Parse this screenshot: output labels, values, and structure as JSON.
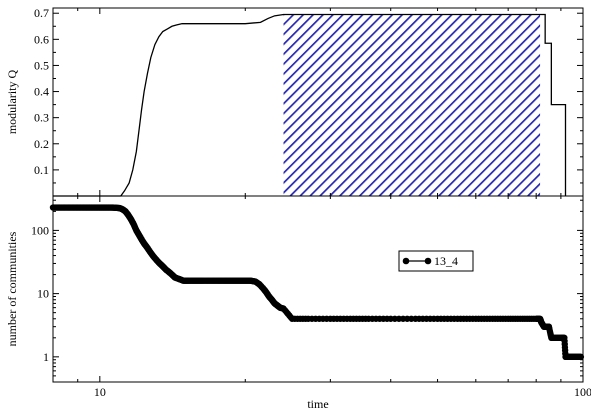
{
  "chart_data": [
    {
      "type": "area",
      "ylabel": "modularity Q",
      "xscale": "log",
      "xlim": [
        8,
        100
      ],
      "ylim": [
        0,
        0.72
      ],
      "yticks": [
        0.1,
        0.2,
        0.3,
        0.4,
        0.5,
        0.6,
        0.7
      ],
      "ytick_labels": [
        "0.1",
        "0.2",
        "0.3",
        "0.4",
        "0.5",
        "0.6",
        "0.7"
      ],
      "grid": false,
      "hatch_color": "#2626b0",
      "series": [
        {
          "style": "step",
          "color": "#000000",
          "x": [
            8,
            11.05,
            11.25,
            11.5,
            11.7,
            11.9,
            12.05,
            12.2,
            12.35,
            12.55,
            12.75,
            13.0,
            13.25,
            13.5,
            13.8,
            14.1,
            14.4,
            14.8,
            15.3,
            16.2,
            18.0,
            20.0,
            21.5,
            22.3,
            23.0,
            24.0,
            30.0,
            40.0,
            60.0,
            81.5,
            83.5,
            86.0,
            90.5,
            92.0
          ],
          "y": [
            0.0,
            0.0,
            0.02,
            0.05,
            0.1,
            0.17,
            0.25,
            0.33,
            0.4,
            0.47,
            0.53,
            0.58,
            0.61,
            0.63,
            0.64,
            0.65,
            0.655,
            0.66,
            0.66,
            0.66,
            0.66,
            0.66,
            0.665,
            0.68,
            0.69,
            0.695,
            0.695,
            0.695,
            0.695,
            0.695,
            0.585,
            0.35,
            0.35,
            0.0
          ]
        }
      ],
      "hatched_region": {
        "x_from": 24.0,
        "x_to": 81.5,
        "y": 0.695
      }
    },
    {
      "type": "line",
      "ylabel": "number of communities",
      "xlabel": "time",
      "xscale": "log",
      "yscale": "log",
      "xlim": [
        8,
        100
      ],
      "ylim": [
        0.4,
        350
      ],
      "xticks": [
        10,
        100
      ],
      "xtick_labels": [
        "10",
        "100"
      ],
      "yticks": [
        1,
        10,
        100
      ],
      "ytick_labels": [
        "1",
        "10",
        "100"
      ],
      "grid": false,
      "legend_position": "right",
      "series": [
        {
          "name": "13_4",
          "color": "#000000",
          "marker": "circle",
          "x": [
            8.0,
            8.2,
            8.4,
            8.6,
            8.8,
            9.0,
            9.2,
            9.4,
            9.6,
            9.8,
            10.0,
            10.2,
            10.4,
            10.6,
            10.8,
            11.0,
            11.15,
            11.3,
            11.45,
            11.6,
            11.75,
            11.9,
            12.05,
            12.2,
            12.35,
            12.5,
            12.7,
            12.9,
            13.1,
            13.3,
            13.5,
            13.7,
            13.9,
            14.1,
            14.3,
            14.6,
            14.9,
            15.3,
            15.8,
            16.3,
            16.9,
            17.5,
            18.1,
            18.7,
            19.3,
            19.9,
            20.5,
            21.0,
            21.4,
            21.8,
            22.1,
            22.4,
            22.7,
            23.0,
            23.3,
            23.6,
            24.0,
            25.0,
            27.0,
            30.0,
            33.0,
            36.0,
            40.0,
            45.0,
            50.0,
            55.0,
            60.0,
            65.0,
            70.0,
            75.0,
            80.0,
            81.5,
            82.0,
            83.0,
            84.0,
            85.0,
            86.0,
            88.0,
            90.0,
            91.5,
            92.0,
            93.0,
            95.0,
            97.0,
            99.0
          ],
          "y": [
            230,
            230,
            230,
            230,
            230,
            230,
            230,
            230,
            230,
            230,
            230,
            230,
            230,
            230,
            228,
            225,
            215,
            200,
            175,
            150,
            125,
            100,
            85,
            72,
            62,
            55,
            46,
            39,
            34,
            30,
            27,
            24,
            22,
            20,
            18,
            17,
            16,
            16,
            16,
            16,
            16,
            16,
            16,
            16,
            16,
            16,
            16,
            15.5,
            14,
            12,
            10.5,
            9,
            8,
            7,
            6.5,
            6,
            5.8,
            4,
            4,
            4,
            4,
            4,
            4,
            4,
            4,
            4,
            4,
            4,
            4,
            4,
            4,
            4,
            3.5,
            3,
            3,
            3,
            2,
            2,
            2,
            2,
            1,
            1,
            1,
            1,
            1
          ]
        }
      ]
    }
  ]
}
